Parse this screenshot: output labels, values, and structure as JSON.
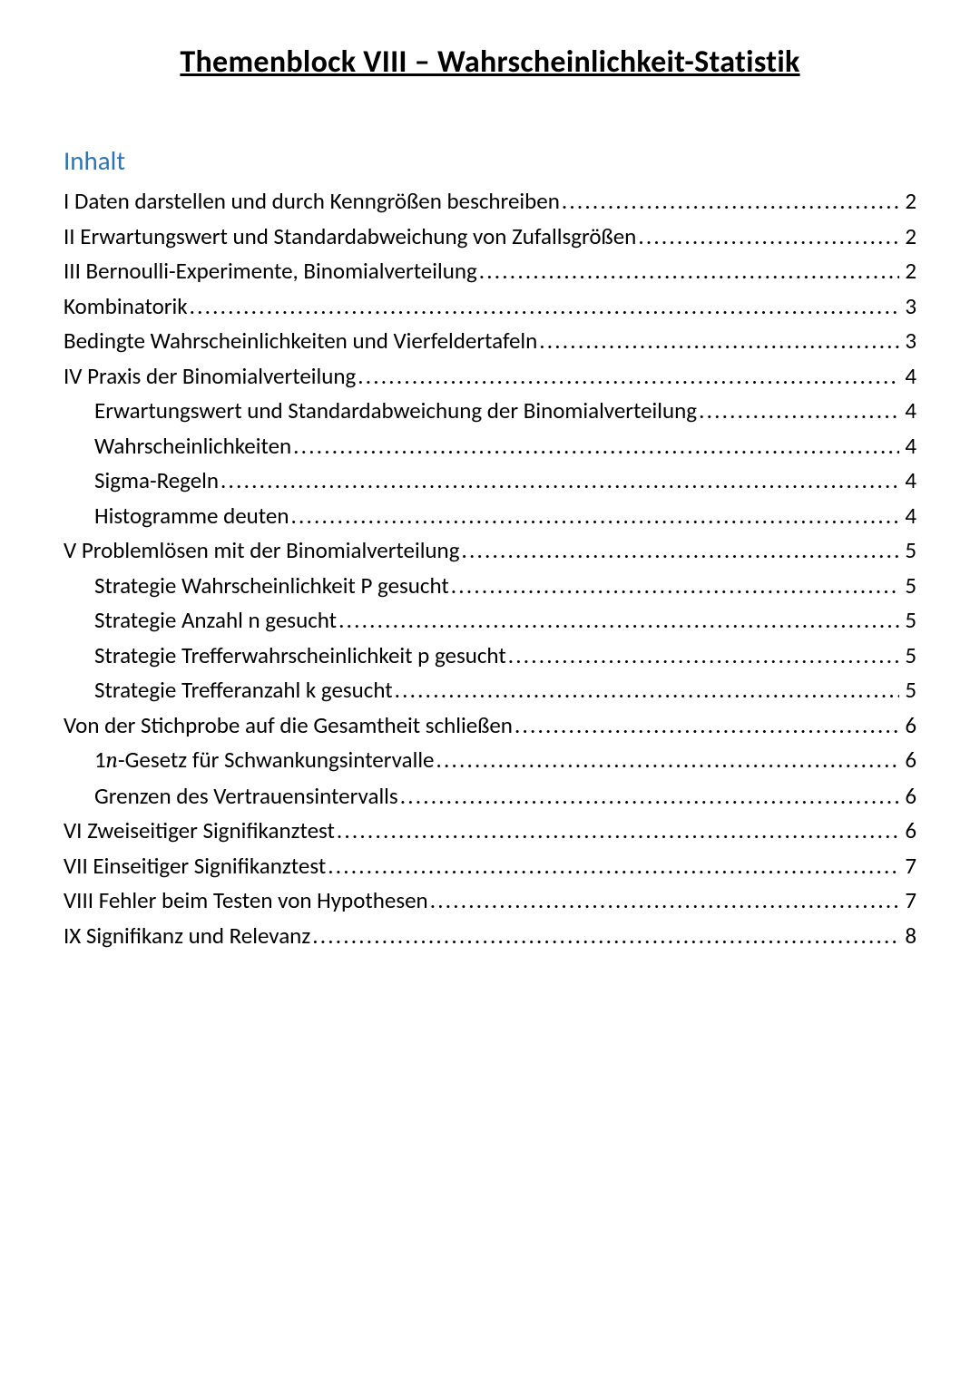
{
  "title": "Themenblock VIII – Wahrscheinlichkeit-Statistik",
  "toc_header": "Inhalt",
  "entries": [
    {
      "label": "I Daten darstellen und durch Kenngrößen beschreiben ",
      "page": "2",
      "sub": false
    },
    {
      "label": "II Erwartungswert und Standardabweichung von Zufallsgrößen ",
      "page": "2",
      "sub": false
    },
    {
      "label": "III Bernoulli-Experimente, Binomialverteilung ",
      "page": "2",
      "sub": false
    },
    {
      "label": "Kombinatorik ",
      "page": "3",
      "sub": false
    },
    {
      "label": "Bedingte Wahrscheinlichkeiten und Vierfeldertafeln ",
      "page": "3",
      "sub": false
    },
    {
      "label": "IV Praxis der Binomialverteilung ",
      "page": "4",
      "sub": false
    },
    {
      "label": "Erwartungswert und Standardabweichung der Binomialverteilung ",
      "page": "4",
      "sub": true
    },
    {
      "label": "Wahrscheinlichkeiten",
      "page": "4",
      "sub": true
    },
    {
      "label": "Sigma-Regeln ",
      "page": "4",
      "sub": true
    },
    {
      "label": "Histogramme deuten ",
      "page": "4",
      "sub": true
    },
    {
      "label": "V Problemlösen mit der Binomialverteilung ",
      "page": "5",
      "sub": false
    },
    {
      "label": "Strategie Wahrscheinlichkeit P gesucht ",
      "page": "5",
      "sub": true
    },
    {
      "label": "Strategie Anzahl n gesucht ",
      "page": "5",
      "sub": true
    },
    {
      "label": "Strategie Trefferwahrscheinlichkeit p gesucht ",
      "page": "5",
      "sub": true
    },
    {
      "label": "Strategie Trefferanzahl k gesucht",
      "page": "5",
      "sub": true
    },
    {
      "label": "Von der Stichprobe auf die Gesamtheit schließen",
      "page": "6",
      "sub": false
    },
    {
      "label_html": "1<span class=\"math-italic\">n</span>-Gesetz für Schwankungsintervalle",
      "page": "6",
      "sub": true
    },
    {
      "label": "Grenzen des Vertrauensintervalls ",
      "page": "6",
      "sub": true
    },
    {
      "label": "VI Zweiseitiger Signifikanztest ",
      "page": "6",
      "sub": false
    },
    {
      "label": "VII Einseitiger Signifikanztest ",
      "page": "7",
      "sub": false
    },
    {
      "label": "VIII Fehler beim Testen von Hypothesen ",
      "page": "7",
      "sub": false
    },
    {
      "label": "IX Signifikanz und Relevanz ",
      "page": "8",
      "sub": false
    }
  ]
}
